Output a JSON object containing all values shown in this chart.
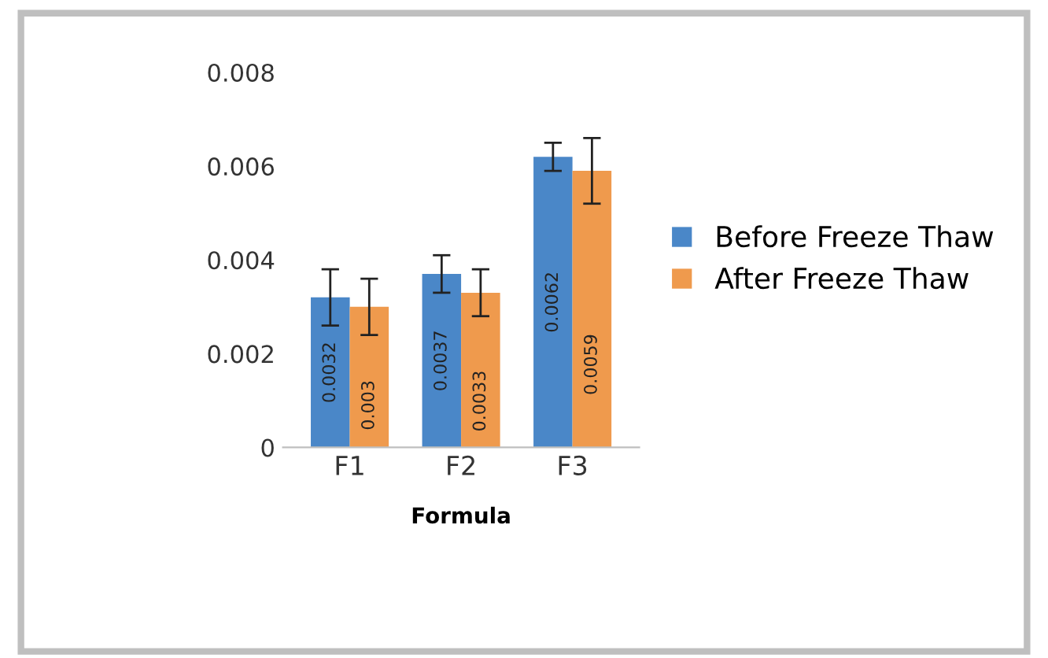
{
  "chart_data": {
    "type": "bar",
    "xlabel": "Formula",
    "categories": [
      "F1",
      "F2",
      "F3"
    ],
    "series": [
      {
        "name": "Before Freeze Thaw",
        "color": "#4a87c8",
        "values": [
          0.0032,
          0.0037,
          0.0062
        ],
        "errors": [
          0.0006,
          0.0004,
          0.0003
        ]
      },
      {
        "name": "After Freeze Thaw",
        "color": "#ef9a4d",
        "values": [
          0.003,
          0.0033,
          0.0059
        ],
        "errors": [
          0.0006,
          0.0005,
          0.0007
        ]
      }
    ],
    "ylim": [
      0,
      0.008
    ],
    "yticks": [
      {
        "value": 0,
        "label": "0"
      },
      0.002,
      0.004,
      0.006,
      0.008
    ],
    "data_labels": true,
    "grid": false,
    "legend": "right"
  }
}
